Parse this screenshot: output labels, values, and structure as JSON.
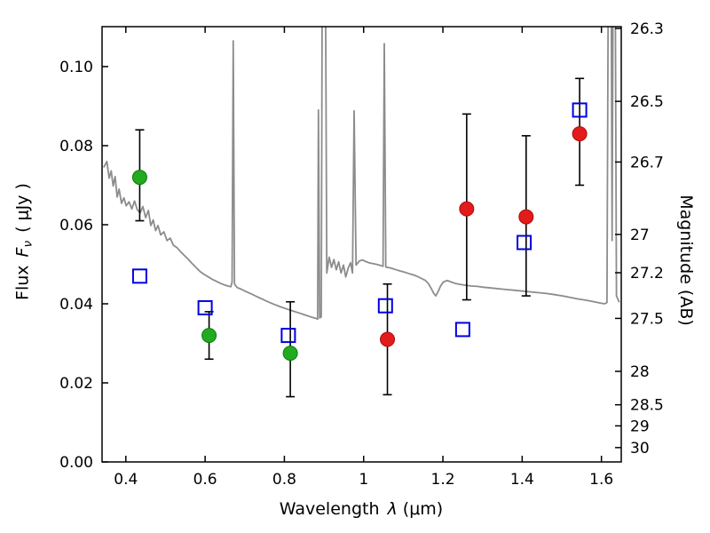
{
  "chart_data": {
    "type": "scatter",
    "title": "",
    "xlabel_word": "Wavelength",
    "xlabel_symbol": "λ",
    "xlabel_unit": "(μm)",
    "ylabel_word": "Flux",
    "ylabel_f": "F",
    "ylabel_sub": "ν",
    "ylabel_unit": "( μJy )",
    "ylabel_right": "Magnitude (AB)",
    "xlim": [
      0.34,
      1.65
    ],
    "ylim": [
      0,
      0.1101
    ],
    "grid": false,
    "legend": "none",
    "xticks": [
      0.4,
      0.6,
      0.8,
      1,
      1.2,
      1.4,
      1.6
    ],
    "xtick_labels": [
      "0.4",
      "0.6",
      "0.8",
      "1",
      "1.2",
      "1.4",
      "1.6"
    ],
    "yticks_left": [
      0.0,
      0.02,
      0.04,
      0.06,
      0.08,
      0.1
    ],
    "ytick_left_labels": [
      "0.00",
      "0.02",
      "0.04",
      "0.06",
      "0.08",
      "0.10"
    ],
    "yticks_right_mag": [
      26.3,
      26.5,
      26.7,
      27,
      27.2,
      27.5,
      28,
      28.5,
      29,
      30
    ],
    "ytick_right_labels": [
      "26.3",
      "26.5",
      "26.7",
      "27",
      "27.2",
      "27.5",
      "28",
      "28.5",
      "29",
      "30"
    ],
    "magnitude_zeropoint_ab": 23.9,
    "colors": {
      "spectrum": "#8c8c8c",
      "green": "#21ab21",
      "green_edge": "#0e7a0e",
      "red": "#e31b1b",
      "red_edge": "#a80f0f",
      "blue": "#0000e0",
      "errorbar": "#000000",
      "frame": "#000000"
    },
    "series": [
      {
        "name": "green-filled-circles",
        "marker": "circle",
        "color_key": "green",
        "points": [
          {
            "x": 0.435,
            "y": 0.072,
            "elo": 0.011,
            "ehi": 0.012
          },
          {
            "x": 0.61,
            "y": 0.032,
            "elo": 0.006,
            "ehi": 0.006
          },
          {
            "x": 0.815,
            "y": 0.0275,
            "elo": 0.011,
            "ehi": 0.013
          }
        ]
      },
      {
        "name": "red-filled-circles",
        "marker": "circle",
        "color_key": "red",
        "points": [
          {
            "x": 1.06,
            "y": 0.031,
            "elo": 0.014,
            "ehi": 0.014
          },
          {
            "x": 1.26,
            "y": 0.064,
            "elo": 0.023,
            "ehi": 0.024
          },
          {
            "x": 1.41,
            "y": 0.062,
            "elo": 0.02,
            "ehi": 0.0205
          },
          {
            "x": 1.545,
            "y": 0.083,
            "elo": 0.013,
            "ehi": 0.014
          }
        ]
      },
      {
        "name": "blue-open-squares",
        "marker": "square",
        "color_key": "blue",
        "points": [
          {
            "x": 0.435,
            "y": 0.047
          },
          {
            "x": 0.6,
            "y": 0.039
          },
          {
            "x": 0.81,
            "y": 0.032
          },
          {
            "x": 1.055,
            "y": 0.0395
          },
          {
            "x": 1.25,
            "y": 0.0335
          },
          {
            "x": 1.405,
            "y": 0.0555
          },
          {
            "x": 1.545,
            "y": 0.089
          }
        ]
      }
    ],
    "spectrum_points": [
      [
        0.344,
        0.0745
      ],
      [
        0.352,
        0.076
      ],
      [
        0.358,
        0.0718
      ],
      [
        0.363,
        0.0736
      ],
      [
        0.368,
        0.0698
      ],
      [
        0.373,
        0.0722
      ],
      [
        0.378,
        0.067
      ],
      [
        0.383,
        0.069
      ],
      [
        0.389,
        0.0654
      ],
      [
        0.395,
        0.0668
      ],
      [
        0.401,
        0.0648
      ],
      [
        0.408,
        0.0658
      ],
      [
        0.415,
        0.064
      ],
      [
        0.422,
        0.066
      ],
      [
        0.429,
        0.0638
      ],
      [
        0.436,
        0.063
      ],
      [
        0.443,
        0.0646
      ],
      [
        0.45,
        0.0618
      ],
      [
        0.457,
        0.0636
      ],
      [
        0.463,
        0.0598
      ],
      [
        0.469,
        0.0612
      ],
      [
        0.475,
        0.0585
      ],
      [
        0.481,
        0.0598
      ],
      [
        0.488,
        0.0574
      ],
      [
        0.496,
        0.0582
      ],
      [
        0.504,
        0.056
      ],
      [
        0.512,
        0.0566
      ],
      [
        0.52,
        0.0548
      ],
      [
        0.529,
        0.0542
      ],
      [
        0.538,
        0.0532
      ],
      [
        0.548,
        0.0522
      ],
      [
        0.558,
        0.0512
      ],
      [
        0.568,
        0.0501
      ],
      [
        0.578,
        0.0491
      ],
      [
        0.588,
        0.0481
      ],
      [
        0.598,
        0.0474
      ],
      [
        0.608,
        0.0468
      ],
      [
        0.618,
        0.0462
      ],
      [
        0.628,
        0.0457
      ],
      [
        0.638,
        0.0452
      ],
      [
        0.648,
        0.0448
      ],
      [
        0.658,
        0.0445
      ],
      [
        0.665,
        0.0443
      ],
      [
        0.668,
        0.0455
      ],
      [
        0.671,
        0.1065
      ],
      [
        0.674,
        0.045
      ],
      [
        0.681,
        0.0441
      ],
      [
        0.691,
        0.0437
      ],
      [
        0.703,
        0.0431
      ],
      [
        0.717,
        0.0425
      ],
      [
        0.731,
        0.0418
      ],
      [
        0.746,
        0.0411
      ],
      [
        0.761,
        0.0404
      ],
      [
        0.776,
        0.0398
      ],
      [
        0.791,
        0.0392
      ],
      [
        0.806,
        0.0387
      ],
      [
        0.821,
        0.0382
      ],
      [
        0.836,
        0.0377
      ],
      [
        0.851,
        0.0372
      ],
      [
        0.863,
        0.0368
      ],
      [
        0.873,
        0.0365
      ],
      [
        0.88,
        0.0363
      ],
      [
        0.884,
        0.0361
      ],
      [
        0.886,
        0.089
      ],
      [
        0.889,
        0.0364
      ],
      [
        0.893,
        0.0367
      ],
      [
        0.896,
        0.14
      ],
      [
        0.903,
        0.14
      ],
      [
        0.907,
        0.0478
      ],
      [
        0.913,
        0.0518
      ],
      [
        0.919,
        0.0492
      ],
      [
        0.925,
        0.0512
      ],
      [
        0.931,
        0.0486
      ],
      [
        0.937,
        0.0506
      ],
      [
        0.943,
        0.0478
      ],
      [
        0.949,
        0.0498
      ],
      [
        0.955,
        0.0468
      ],
      [
        0.961,
        0.049
      ],
      [
        0.967,
        0.0504
      ],
      [
        0.972,
        0.0478
      ],
      [
        0.976,
        0.0888
      ],
      [
        0.981,
        0.0498
      ],
      [
        0.989,
        0.0508
      ],
      [
        0.997,
        0.0511
      ],
      [
        1.005,
        0.0507
      ],
      [
        1.013,
        0.0504
      ],
      [
        1.022,
        0.0502
      ],
      [
        1.032,
        0.05
      ],
      [
        1.042,
        0.0497
      ],
      [
        1.049,
        0.0495
      ],
      [
        1.052,
        0.1058
      ],
      [
        1.056,
        0.0493
      ],
      [
        1.066,
        0.0491
      ],
      [
        1.076,
        0.0488
      ],
      [
        1.086,
        0.0485
      ],
      [
        1.096,
        0.0482
      ],
      [
        1.106,
        0.0479
      ],
      [
        1.116,
        0.0476
      ],
      [
        1.126,
        0.0473
      ],
      [
        1.136,
        0.0469
      ],
      [
        1.146,
        0.0464
      ],
      [
        1.156,
        0.0459
      ],
      [
        1.164,
        0.045
      ],
      [
        1.171,
        0.0438
      ],
      [
        1.177,
        0.0426
      ],
      [
        1.182,
        0.042
      ],
      [
        1.188,
        0.0431
      ],
      [
        1.194,
        0.0445
      ],
      [
        1.201,
        0.0455
      ],
      [
        1.211,
        0.0459
      ],
      [
        1.221,
        0.0455
      ],
      [
        1.233,
        0.0451
      ],
      [
        1.245,
        0.0449
      ],
      [
        1.258,
        0.0447
      ],
      [
        1.272,
        0.0445
      ],
      [
        1.287,
        0.0444
      ],
      [
        1.302,
        0.0442
      ],
      [
        1.322,
        0.044
      ],
      [
        1.342,
        0.0438
      ],
      [
        1.362,
        0.0436
      ],
      [
        1.382,
        0.0434
      ],
      [
        1.402,
        0.0432
      ],
      [
        1.422,
        0.043
      ],
      [
        1.442,
        0.0428
      ],
      [
        1.462,
        0.0426
      ],
      [
        1.482,
        0.0423
      ],
      [
        1.502,
        0.042
      ],
      [
        1.522,
        0.0416
      ],
      [
        1.542,
        0.0412
      ],
      [
        1.562,
        0.0409
      ],
      [
        1.582,
        0.0405
      ],
      [
        1.597,
        0.0402
      ],
      [
        1.608,
        0.04
      ],
      [
        1.614,
        0.0403
      ],
      [
        1.618,
        0.14
      ],
      [
        1.624,
        0.14
      ],
      [
        1.627,
        0.056
      ],
      [
        1.63,
        0.14
      ],
      [
        1.634,
        0.14
      ],
      [
        1.638,
        0.042
      ],
      [
        1.645,
        0.0404
      ]
    ]
  }
}
